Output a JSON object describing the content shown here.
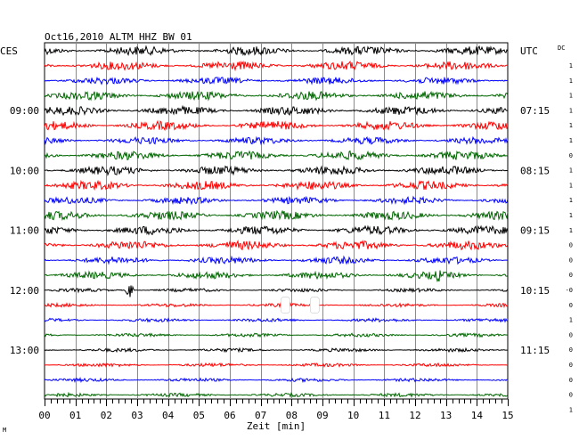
{
  "chart_data": {
    "type": "line",
    "title": "Oct16,2010   ALTM HHZ BW 01",
    "left_timezone": "CES",
    "right_timezone": "UTC",
    "dc_header": "DC",
    "xlabel": "Zeit [min]",
    "xlim": [
      0,
      15
    ],
    "x_ticks": [
      "00",
      "01",
      "02",
      "03",
      "04",
      "05",
      "06",
      "07",
      "08",
      "09",
      "10",
      "11",
      "12",
      "13",
      "14",
      "15"
    ],
    "left_hour_labels": [
      {
        "trace": 4,
        "label": "09:00"
      },
      {
        "trace": 8,
        "label": "10:00"
      },
      {
        "trace": 12,
        "label": "11:00"
      },
      {
        "trace": 16,
        "label": "12:00"
      },
      {
        "trace": 20,
        "label": "13:00"
      }
    ],
    "right_hour_labels": [
      {
        "trace": 0,
        "label": "UTC"
      },
      {
        "trace": 4,
        "label": "07:15"
      },
      {
        "trace": 8,
        "label": "08:15"
      },
      {
        "trace": 12,
        "label": "09:15"
      },
      {
        "trace": 16,
        "label": "10:15"
      },
      {
        "trace": 20,
        "label": "11:15"
      }
    ],
    "trace_colors": [
      "#000000",
      "#ff0000",
      "#0000ff",
      "#006600"
    ],
    "trace_count": 24,
    "trace_amplitude": [
      5,
      5,
      4,
      5,
      5,
      5,
      4,
      5,
      5,
      5,
      4,
      5,
      5,
      5,
      4,
      4,
      2,
      2,
      2,
      2,
      2,
      2,
      2,
      2
    ],
    "dc_offsets": [
      "1",
      "1",
      "1",
      "1",
      "1",
      "1",
      "0",
      "1",
      "1",
      "1",
      "1",
      "1",
      "0",
      "0",
      "0",
      "-0",
      "0",
      "1",
      "0",
      "0",
      "0",
      "0",
      "0",
      "1"
    ],
    "events": [
      {
        "trace": 16,
        "minute": 2.75,
        "type": "spike",
        "amplitude": 10
      },
      {
        "trace": 15,
        "minute": 12.75,
        "type": "spike",
        "amplitude": 10
      },
      {
        "trace": 8,
        "minute": 13.3,
        "type": "burst",
        "amplitude": 7
      },
      {
        "trace": 17,
        "minute": 7.8,
        "type": "gap"
      },
      {
        "trace": 17,
        "minute": 8.75,
        "type": "gap"
      }
    ],
    "bottom_left_mark": "M"
  }
}
